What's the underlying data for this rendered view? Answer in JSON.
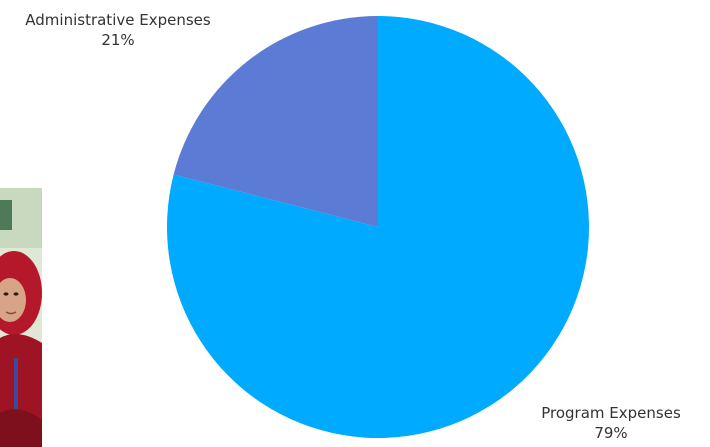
{
  "chart_data": {
    "type": "pie",
    "title": "",
    "slices": [
      {
        "label": "Program Expenses",
        "value": 79,
        "value_label": "79%",
        "color": "#00aaff"
      },
      {
        "label": "Administrative Expenses",
        "value": 21,
        "value_label": "21%",
        "color": "#5b7bd5"
      }
    ],
    "start_angle_deg": 0,
    "direction": "clockwise",
    "legend": "none",
    "labels": "outside"
  },
  "photo": {
    "icon": "child-photo-icon"
  }
}
